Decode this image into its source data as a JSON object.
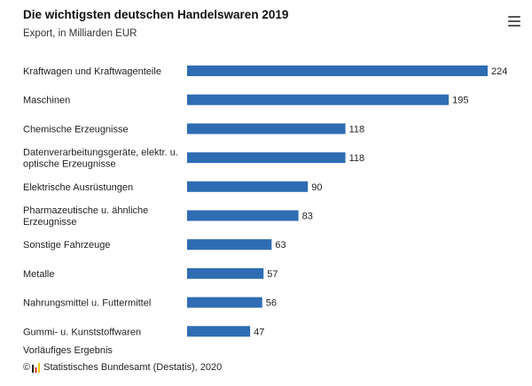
{
  "menu_icon": "hamburger-menu-icon",
  "footnote": "Vorläufiges Ergebnis",
  "credit": {
    "copyright": "©",
    "text": "Statistisches Bundesamt (Destatis), 2020",
    "logo_icon": "destatis-logo-icon"
  },
  "colors": {
    "bar": "#2e6db4"
  },
  "chart_data": {
    "type": "bar",
    "orientation": "horizontal",
    "title": "Die wichtigsten deutschen Handelswaren 2019",
    "subtitle": "Export, in Milliarden EUR",
    "categories": [
      [
        "Kraftwagen und Kraftwagenteile"
      ],
      [
        "Maschinen"
      ],
      [
        "Chemische Erzeugnisse"
      ],
      [
        "Datenverarbeitungsgeräte, elektr. u.",
        "optische Erzeugnisse"
      ],
      [
        "Elektrische Ausrüstungen"
      ],
      [
        "Pharmazeutische u. ähnliche",
        "Erzeugnisse"
      ],
      [
        "Sonstige Fahrzeuge"
      ],
      [
        "Metalle"
      ],
      [
        "Nahrungsmittel u. Futtermittel"
      ],
      [
        "Gummi- u. Kunststoffwaren"
      ]
    ],
    "values": [
      224,
      195,
      118,
      118,
      90,
      83,
      63,
      57,
      56,
      47
    ],
    "xlim": [
      0,
      224
    ],
    "grid": false,
    "legend": "none"
  }
}
